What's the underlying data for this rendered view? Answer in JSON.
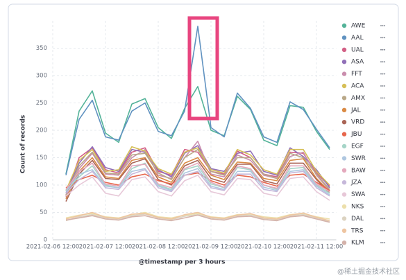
{
  "chart_data": {
    "type": "line",
    "y_label": "Count of records",
    "x_label": "@timestamp per 3 hours",
    "watermark": "@稀土掘金技术社区",
    "x": [
      "2021-02-06 18:00",
      "2021-02-07 00:00",
      "2021-02-07 06:00",
      "2021-02-07 12:00",
      "2021-02-07 18:00",
      "2021-02-08 00:00",
      "2021-02-08 06:00",
      "2021-02-08 12:00",
      "2021-02-08 18:00",
      "2021-02-09 00:00",
      "2021-02-09 06:00",
      "2021-02-09 12:00",
      "2021-02-09 18:00",
      "2021-02-10 00:00",
      "2021-02-10 06:00",
      "2021-02-10 12:00",
      "2021-02-10 18:00",
      "2021-02-11 00:00",
      "2021-02-11 06:00",
      "2021-02-11 12:00",
      "2021-02-11 18:00"
    ],
    "xlim": [
      "2021-02-06 12:00",
      "2021-02-11 21:00"
    ],
    "xticks": [
      "2021-02-06 12:00",
      "2021-02-07 12:00",
      "2021-02-08 12:00",
      "2021-02-09 12:00",
      "2021-02-10 12:00",
      "2021-02-11 12:00"
    ],
    "ylim": [
      0,
      400
    ],
    "yticks": [
      0,
      50,
      100,
      150,
      200,
      250,
      300,
      350
    ],
    "grid": true,
    "legend": "right",
    "series": [
      {
        "name": "AWE",
        "color": "#54b399",
        "values": [
          120,
          235,
          272,
          195,
          178,
          248,
          258,
          205,
          185,
          240,
          280,
          200,
          190,
          262,
          238,
          182,
          172,
          245,
          242,
          198,
          165
        ]
      },
      {
        "name": "AAL",
        "color": "#6092c0",
        "values": [
          118,
          220,
          255,
          188,
          182,
          235,
          250,
          198,
          190,
          235,
          390,
          205,
          188,
          268,
          240,
          188,
          178,
          252,
          238,
          202,
          168
        ]
      },
      {
        "name": "UAL",
        "color": "#d36086",
        "values": [
          80,
          150,
          168,
          128,
          122,
          160,
          168,
          125,
          118,
          165,
          160,
          125,
          120,
          162,
          150,
          120,
          115,
          160,
          158,
          122,
          98
        ]
      },
      {
        "name": "ASA",
        "color": "#9170b8",
        "values": [
          85,
          140,
          170,
          132,
          125,
          165,
          160,
          128,
          115,
          158,
          172,
          130,
          125,
          158,
          162,
          125,
          118,
          168,
          152,
          128,
          95
        ]
      },
      {
        "name": "FFT",
        "color": "#ca8eae",
        "values": [
          78,
          130,
          158,
          120,
          118,
          150,
          165,
          118,
          112,
          150,
          180,
          120,
          115,
          155,
          145,
          118,
          112,
          152,
          160,
          118,
          90
        ]
      },
      {
        "name": "ACA",
        "color": "#d6bf57",
        "values": [
          90,
          145,
          165,
          125,
          128,
          170,
          162,
          130,
          120,
          160,
          168,
          128,
          122,
          165,
          155,
          128,
          120,
          165,
          165,
          125,
          100
        ]
      },
      {
        "name": "AMX",
        "color": "#b9a888",
        "values": [
          82,
          135,
          160,
          122,
          120,
          155,
          158,
          122,
          110,
          150,
          165,
          125,
          118,
          150,
          150,
          120,
          112,
          158,
          150,
          120,
          92
        ]
      },
      {
        "name": "JAL",
        "color": "#da8b45",
        "values": [
          75,
          125,
          150,
          115,
          112,
          145,
          150,
          115,
          105,
          140,
          150,
          118,
          110,
          142,
          140,
          112,
          108,
          145,
          148,
          112,
          88
        ]
      },
      {
        "name": "VRD",
        "color": "#aa6556",
        "values": [
          70,
          120,
          145,
          112,
          110,
          140,
          148,
          110,
          100,
          135,
          145,
          112,
          105,
          138,
          138,
          108,
          102,
          140,
          140,
          110,
          85
        ]
      },
      {
        "name": "JBU",
        "color": "#e7664c",
        "values": [
          95,
          110,
          118,
          105,
          100,
          115,
          120,
          108,
          102,
          118,
          122,
          108,
          100,
          118,
          115,
          105,
          98,
          118,
          120,
          105,
          90
        ]
      },
      {
        "name": "EGF",
        "color": "#a6d5c8",
        "values": [
          90,
          115,
          135,
          100,
          95,
          130,
          140,
          100,
          92,
          128,
          135,
          102,
          95,
          132,
          128,
          100,
          92,
          130,
          132,
          100,
          85
        ]
      },
      {
        "name": "SWR",
        "color": "#afc7e0",
        "values": [
          88,
          120,
          128,
          98,
          95,
          125,
          130,
          98,
          90,
          122,
          130,
          98,
          92,
          125,
          125,
          96,
          90,
          125,
          128,
          98,
          82
        ]
      },
      {
        "name": "BAW",
        "color": "#e4a9bd",
        "values": [
          92,
          125,
          140,
          102,
          98,
          135,
          138,
          102,
          95,
          130,
          140,
          105,
          96,
          135,
          130,
          100,
          94,
          135,
          135,
          102,
          88
        ]
      },
      {
        "name": "JZA",
        "color": "#c6b8da",
        "values": [
          85,
          110,
          125,
          95,
          92,
          120,
          128,
          95,
          88,
          118,
          125,
          95,
          90,
          120,
          120,
          92,
          88,
          122,
          125,
          95,
          80
        ]
      },
      {
        "name": "SWA",
        "color": "#e7c8d8",
        "values": [
          80,
          100,
          115,
          85,
          80,
          110,
          115,
          88,
          80,
          108,
          118,
          88,
          82,
          112,
          110,
          85,
          80,
          112,
          115,
          88,
          72
        ]
      },
      {
        "name": "NKS",
        "color": "#ecdfab",
        "values": [
          40,
          45,
          48,
          42,
          40,
          46,
          50,
          42,
          40,
          45,
          48,
          42,
          40,
          46,
          47,
          42,
          40,
          46,
          48,
          42,
          38
        ]
      },
      {
        "name": "DAL",
        "color": "#dcd3c1",
        "values": [
          35,
          42,
          46,
          40,
          38,
          44,
          47,
          40,
          37,
          43,
          46,
          40,
          38,
          44,
          45,
          39,
          37,
          44,
          46,
          40,
          33
        ]
      },
      {
        "name": "TRS",
        "color": "#eec5a1",
        "values": [
          38,
          44,
          50,
          41,
          39,
          47,
          48,
          41,
          38,
          46,
          50,
          41,
          39,
          45,
          48,
          40,
          38,
          45,
          49,
          41,
          35
        ]
      },
      {
        "name": "KLM",
        "color": "#d4b2aa",
        "values": [
          36,
          40,
          44,
          38,
          36,
          42,
          44,
          38,
          35,
          40,
          45,
          38,
          36,
          42,
          43,
          37,
          35,
          42,
          44,
          38,
          32
        ]
      }
    ]
  }
}
